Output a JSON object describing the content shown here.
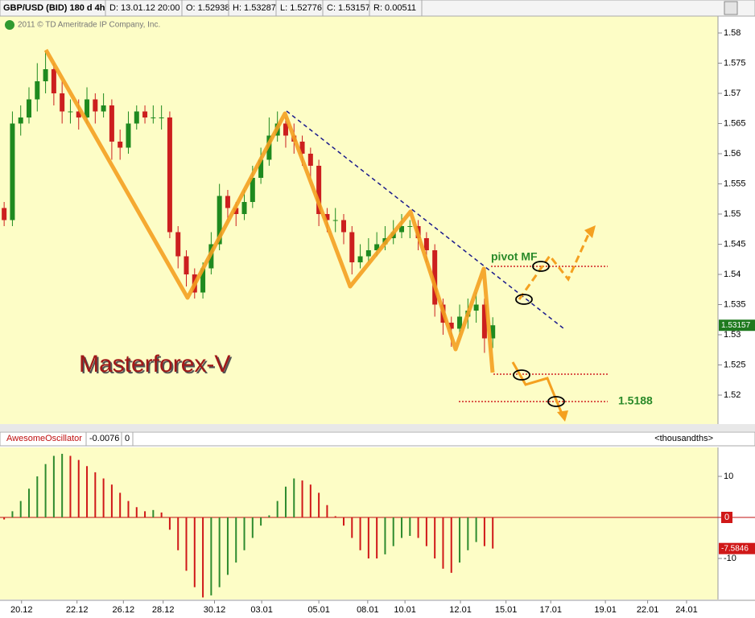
{
  "header": {
    "symbol": "GBP/USD (BID) 180 d 4h",
    "date": "D: 13.01.12 20:00",
    "open": "O: 1.52938",
    "high": "H: 1.53287",
    "low": "L: 1.52776",
    "close": "C: 1.53157",
    "range": "R: 0.00511",
    "copyright": "2011 © TD Ameritrade IP Company, Inc."
  },
  "annotations": {
    "brand": "Masterforex-V",
    "pivot": "pivot MF",
    "target": "1.5188"
  },
  "indicator_header": {
    "name": "AwesomeOscillator",
    "value": "-0.0076",
    "zero": "0",
    "units": "<thousandths>"
  },
  "chart_data": [
    {
      "type": "candlestick",
      "up_color": "#1f8a1f",
      "down_color": "#cc1f1f",
      "xlim": [
        -0.5,
        86
      ],
      "ylim": [
        1.5152,
        1.5828
      ],
      "yticks": [
        1.52,
        1.525,
        1.53,
        1.535,
        1.54,
        1.545,
        1.55,
        1.555,
        1.56,
        1.565,
        1.57,
        1.575,
        1.58
      ],
      "open": [
        1.551,
        1.549,
        1.565,
        1.566,
        1.569,
        1.572,
        1.574,
        1.57,
        1.567,
        1.567,
        1.566,
        1.569,
        1.567,
        1.568,
        1.562,
        1.561,
        1.565,
        1.567,
        1.566,
        1.566,
        1.566,
        1.547,
        1.543,
        1.54,
        1.537,
        1.541,
        1.545,
        1.553,
        1.551,
        1.55,
        1.552,
        1.556,
        1.559,
        1.563,
        1.565,
        1.563,
        1.562,
        1.56,
        1.558,
        1.55,
        1.549,
        1.549,
        1.547,
        1.542,
        1.543,
        1.544,
        1.545,
        1.546,
        1.547,
        1.548,
        1.548,
        1.546,
        1.544,
        1.535,
        1.532,
        1.531,
        1.533,
        1.534,
        1.535,
        1.5294
      ],
      "high": [
        1.552,
        1.567,
        1.568,
        1.571,
        1.575,
        1.577,
        1.575,
        1.572,
        1.569,
        1.569,
        1.571,
        1.57,
        1.57,
        1.569,
        1.564,
        1.567,
        1.568,
        1.568,
        1.568,
        1.568,
        1.567,
        1.548,
        1.544,
        1.541,
        1.542,
        1.547,
        1.555,
        1.554,
        1.552,
        1.554,
        1.558,
        1.561,
        1.566,
        1.567,
        1.566,
        1.565,
        1.563,
        1.561,
        1.559,
        1.551,
        1.551,
        1.55,
        1.548,
        1.545,
        1.546,
        1.547,
        1.548,
        1.549,
        1.55,
        1.549,
        1.549,
        1.547,
        1.545,
        1.536,
        1.533,
        1.535,
        1.536,
        1.537,
        1.536,
        1.5329
      ],
      "low": [
        1.548,
        1.548,
        1.563,
        1.565,
        1.567,
        1.57,
        1.568,
        1.565,
        1.565,
        1.564,
        1.565,
        1.565,
        1.566,
        1.559,
        1.559,
        1.56,
        1.564,
        1.565,
        1.565,
        1.564,
        1.546,
        1.541,
        1.538,
        1.536,
        1.536,
        1.54,
        1.544,
        1.549,
        1.548,
        1.549,
        1.551,
        1.555,
        1.558,
        1.562,
        1.561,
        1.56,
        1.558,
        1.556,
        1.548,
        1.547,
        1.547,
        1.545,
        1.54,
        1.541,
        1.542,
        1.543,
        1.544,
        1.545,
        1.546,
        1.546,
        1.544,
        1.542,
        1.533,
        1.53,
        1.528,
        1.53,
        1.531,
        1.532,
        1.527,
        1.5278
      ],
      "close": [
        1.549,
        1.565,
        1.566,
        1.569,
        1.572,
        1.574,
        1.57,
        1.567,
        1.567,
        1.566,
        1.569,
        1.567,
        1.568,
        1.562,
        1.561,
        1.565,
        1.567,
        1.566,
        1.566,
        1.566,
        1.547,
        1.543,
        1.54,
        1.537,
        1.541,
        1.545,
        1.553,
        1.551,
        1.55,
        1.552,
        1.556,
        1.559,
        1.563,
        1.565,
        1.563,
        1.562,
        1.56,
        1.558,
        1.55,
        1.549,
        1.549,
        1.547,
        1.542,
        1.543,
        1.544,
        1.545,
        1.546,
        1.547,
        1.548,
        1.548,
        1.546,
        1.544,
        1.535,
        1.532,
        1.531,
        1.533,
        1.534,
        1.535,
        1.5294,
        1.53157
      ]
    },
    {
      "type": "bar",
      "up_color": "#2e8b2e",
      "down_color": "#d01818",
      "xlim": [
        -0.5,
        86
      ],
      "ylim": [
        -20,
        17.06
      ],
      "yticks": [
        -10,
        0,
        10
      ],
      "last_value": -7.5846,
      "xticks": [
        {
          "value": 2.1,
          "label": "20.12"
        },
        {
          "value": 8.8,
          "label": "22.12"
        },
        {
          "value": 14.4,
          "label": "26.12"
        },
        {
          "value": 19.2,
          "label": "28.12"
        },
        {
          "value": 25.4,
          "label": "30.12"
        },
        {
          "value": 31.1,
          "label": "03.01"
        },
        {
          "value": 38.0,
          "label": "05.01"
        },
        {
          "value": 43.9,
          "label": "08.01"
        },
        {
          "value": 48.4,
          "label": "10.01"
        },
        {
          "value": 55.1,
          "label": "12.01"
        },
        {
          "value": 60.6,
          "label": "15.01"
        },
        {
          "value": 66.0,
          "label": "17.01"
        },
        {
          "value": 72.6,
          "label": "19.01"
        },
        {
          "value": 77.7,
          "label": "22.01"
        },
        {
          "value": 82.4,
          "label": "24.01"
        }
      ],
      "values": [
        -0.5,
        1.5,
        4,
        7,
        10,
        13,
        15,
        15.5,
        15,
        14,
        12.5,
        11,
        9.5,
        8,
        6,
        4,
        2.5,
        1.5,
        1.8,
        1.2,
        -3,
        -8,
        -13,
        -17,
        -19.5,
        -19,
        -17,
        -14,
        -11,
        -8,
        -5,
        -2,
        0.5,
        4,
        7.5,
        9.5,
        9,
        8,
        6,
        3,
        0.3,
        -2,
        -5,
        -8,
        -10,
        -10,
        -9,
        -7,
        -5,
        -4.5,
        -5,
        -7,
        -10,
        -12.5,
        -13.5,
        -11,
        -8,
        -6,
        -7,
        -7.5846
      ]
    }
  ]
}
